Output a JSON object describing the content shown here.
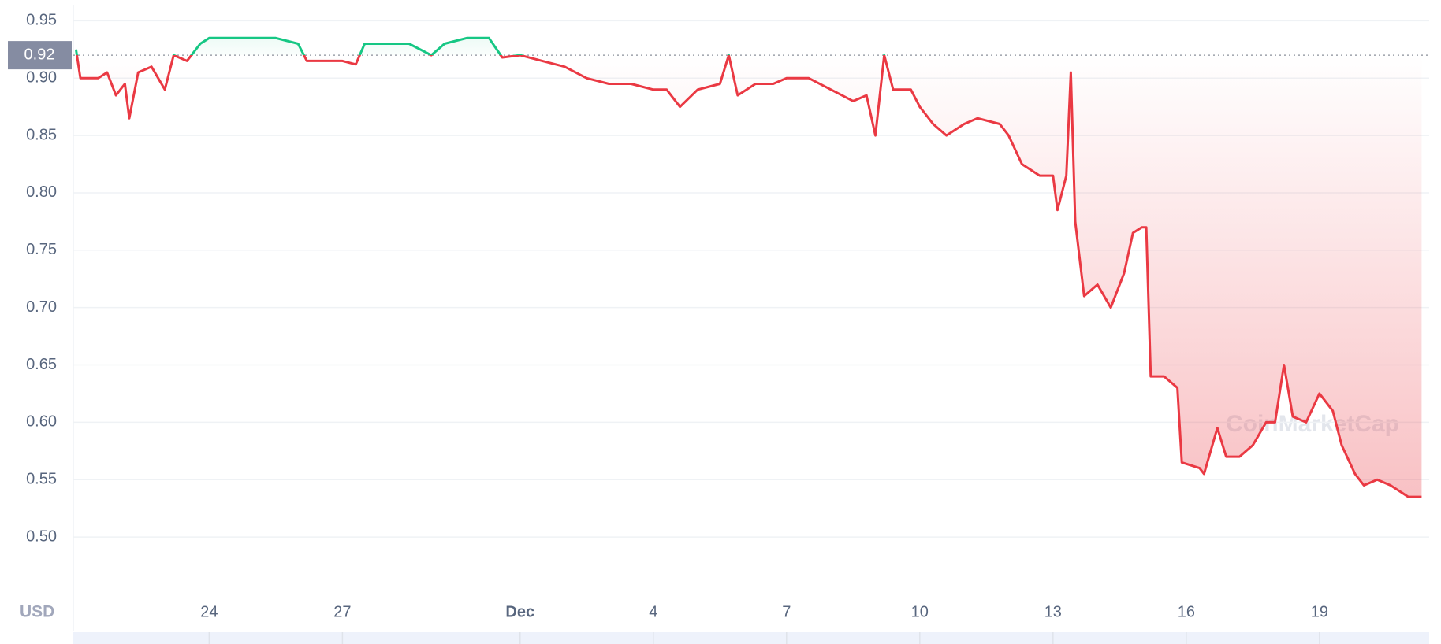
{
  "chart_data": {
    "type": "line",
    "currency": "USD",
    "watermark": "CoinMarketCap",
    "reference_price": 0.92,
    "colors": {
      "up": "#16c784",
      "down": "#ea3943"
    },
    "grid": true,
    "xlim": [
      20.94,
      51.47
    ],
    "xticks": [
      24,
      27,
      {
        "value": 31,
        "label": "Dec"
      },
      {
        "value": 34,
        "label": "4"
      },
      {
        "value": 37,
        "label": "7"
      },
      {
        "value": 40,
        "label": "10"
      },
      {
        "value": 43,
        "label": "13"
      },
      {
        "value": 46,
        "label": "16"
      },
      {
        "value": 49,
        "label": "19"
      }
    ],
    "ylim": [
      0.452,
      0.964
    ],
    "yticks": [
      {
        "value": 0.5,
        "label": "0.50"
      },
      0.55,
      {
        "value": 0.6,
        "label": "0.60"
      },
      0.65,
      {
        "value": 0.7,
        "label": "0.70"
      },
      0.75,
      {
        "value": 0.8,
        "label": "0.80"
      },
      0.85,
      {
        "value": 0.9,
        "label": "0.90"
      },
      0.95
    ],
    "x": [
      21.0,
      21.1,
      21.5,
      21.7,
      21.9,
      22.1,
      22.2,
      22.4,
      22.7,
      23.0,
      23.2,
      23.5,
      23.8,
      24.0,
      24.5,
      25.0,
      25.5,
      26.0,
      26.2,
      26.6,
      27.0,
      27.3,
      27.5,
      28.0,
      28.5,
      29.0,
      29.3,
      29.8,
      30.3,
      30.6,
      31.0,
      31.5,
      32.0,
      32.5,
      33.0,
      33.5,
      34.0,
      34.3,
      34.6,
      35.0,
      35.5,
      35.7,
      35.9,
      36.3,
      36.7,
      37.0,
      37.5,
      38.0,
      38.5,
      38.8,
      39.0,
      39.2,
      39.4,
      39.8,
      40.0,
      40.3,
      40.6,
      41.0,
      41.3,
      41.8,
      42.0,
      42.3,
      42.7,
      43.0,
      43.1,
      43.3,
      43.4,
      43.5,
      43.7,
      44.0,
      44.3,
      44.6,
      44.8,
      45.0,
      45.1,
      45.2,
      45.5,
      45.8,
      45.9,
      46.3,
      46.4,
      46.7,
      46.9,
      47.2,
      47.5,
      47.8,
      48.0,
      48.2,
      48.4,
      48.7,
      49.0,
      49.3,
      49.5,
      49.8,
      50.0,
      50.3,
      50.6,
      51.0,
      51.3
    ],
    "values": [
      0.925,
      0.9,
      0.9,
      0.905,
      0.885,
      0.895,
      0.865,
      0.905,
      0.91,
      0.89,
      0.92,
      0.915,
      0.93,
      0.935,
      0.935,
      0.935,
      0.935,
      0.93,
      0.915,
      0.915,
      0.915,
      0.912,
      0.93,
      0.93,
      0.93,
      0.92,
      0.93,
      0.935,
      0.935,
      0.918,
      0.92,
      0.915,
      0.91,
      0.9,
      0.895,
      0.895,
      0.89,
      0.89,
      0.875,
      0.89,
      0.895,
      0.92,
      0.885,
      0.895,
      0.895,
      0.9,
      0.9,
      0.89,
      0.88,
      0.885,
      0.85,
      0.92,
      0.89,
      0.89,
      0.875,
      0.86,
      0.85,
      0.86,
      0.865,
      0.86,
      0.85,
      0.825,
      0.815,
      0.815,
      0.785,
      0.815,
      0.905,
      0.775,
      0.71,
      0.72,
      0.7,
      0.73,
      0.765,
      0.77,
      0.77,
      0.64,
      0.64,
      0.63,
      0.565,
      0.56,
      0.555,
      0.595,
      0.57,
      0.57,
      0.58,
      0.6,
      0.6,
      0.65,
      0.605,
      0.6,
      0.625,
      0.61,
      0.58,
      0.555,
      0.545,
      0.55,
      0.545,
      0.535,
      0.535
    ]
  }
}
